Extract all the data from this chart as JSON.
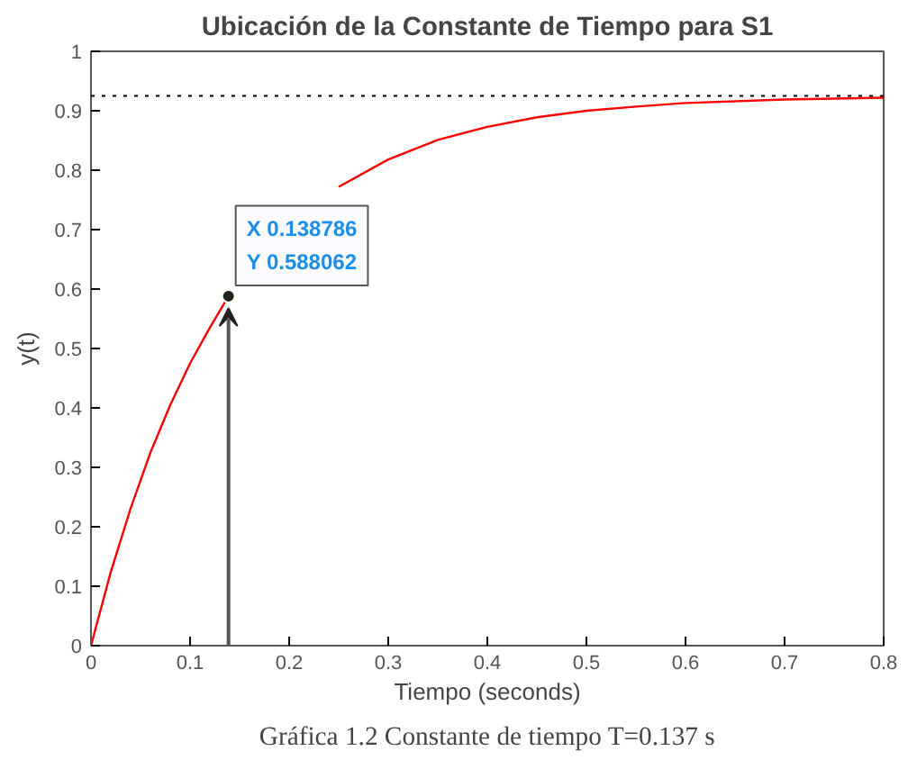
{
  "chart_data": {
    "type": "line",
    "title": "Ubicación de la Constante de Tiempo para S1",
    "xlabel": "Tiempo (seconds)",
    "ylabel": "y(t)",
    "x": [
      0,
      0.02,
      0.04,
      0.06,
      0.08,
      0.1,
      0.12,
      0.138786,
      0.16,
      0.18,
      0.2,
      0.25,
      0.3,
      0.35,
      0.4,
      0.45,
      0.5,
      0.55,
      0.6,
      0.7,
      0.8
    ],
    "series": [
      {
        "color": "#ff0000",
        "values": [
          0,
          0.124,
          0.231,
          0.325,
          0.405,
          0.475,
          0.535,
          0.588,
          null,
          null,
          null,
          0.772,
          0.818,
          0.851,
          0.873,
          0.889,
          0.9,
          0.907,
          0.913,
          0.919,
          0.922
        ]
      }
    ],
    "xlim": [
      0,
      0.8
    ],
    "ylim": [
      0,
      1
    ],
    "xticks": [
      0,
      0.1,
      0.2,
      0.3,
      0.4,
      0.5,
      0.6,
      0.7,
      0.8
    ],
    "yticks": [
      0,
      0.1,
      0.2,
      0.3,
      0.4,
      0.5,
      0.6,
      0.7,
      0.8,
      0.9,
      1
    ],
    "ref_lines": [
      {
        "axis": "y",
        "value": 0.925,
        "color": "#000000",
        "line_style": "dotted"
      }
    ],
    "annotations": [
      {
        "text": "X 0.138786\nY 0.588062",
        "x": 0.138786,
        "y": 0.588062
      },
      "Gráfica 1.2 Constante de tiempo T=0.137 s"
    ],
    "grid": false,
    "marker": "none",
    "line_style": "solid"
  }
}
